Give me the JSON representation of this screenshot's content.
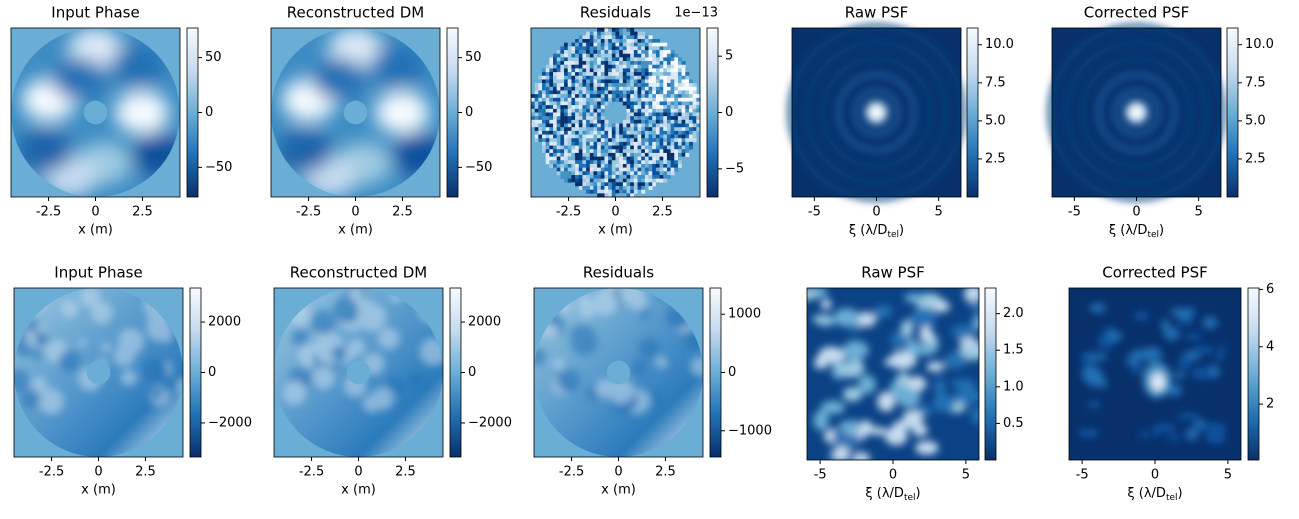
{
  "chart_data": [
    {
      "type": "heatmap",
      "title": "Input Phase",
      "xlabel": "x (m)",
      "xlim": [
        -4.5,
        4.5
      ],
      "xticks": [
        -2.5,
        0.0,
        2.5
      ],
      "clim": [
        -77,
        77
      ],
      "cticks": [
        -50,
        0,
        50
      ],
      "colormap": "Blues_r",
      "pattern": "pupil-smooth"
    },
    {
      "type": "heatmap",
      "title": "Reconstructed DM",
      "xlabel": "x (m)",
      "xlim": [
        -4.5,
        4.5
      ],
      "xticks": [
        -2.5,
        0.0,
        2.5
      ],
      "clim": [
        -77,
        77
      ],
      "cticks": [
        -50,
        0,
        50
      ],
      "colormap": "Blues_r",
      "pattern": "pupil-smooth"
    },
    {
      "type": "heatmap",
      "title": "Residuals",
      "xlabel": "x (m)",
      "xlim": [
        -4.5,
        4.5
      ],
      "xticks": [
        -2.5,
        0.0,
        2.5
      ],
      "clim": [
        -7.5,
        7.5
      ],
      "cticks": [
        -5,
        0,
        5
      ],
      "colorbar_offset": "1e−13",
      "colormap": "Blues_r",
      "pattern": "pupil-noise"
    },
    {
      "type": "heatmap",
      "title": "Raw PSF",
      "xlabel": {
        "text": "ξ (λ/D",
        "subscript": "tel",
        "suffix": ")"
      },
      "xlim": [
        -6.8,
        6.8
      ],
      "xticks": [
        -5,
        0,
        5
      ],
      "clim": [
        0,
        11.1
      ],
      "cticks": [
        2.5,
        {
          "value": 5,
          "label": "5.0"
        },
        7.5,
        {
          "value": 10,
          "label": "10.0"
        }
      ],
      "colormap": "Blues_r",
      "pattern": "psf-rings"
    },
    {
      "type": "heatmap",
      "title": "Corrected PSF",
      "xlabel": {
        "text": "ξ (λ/D",
        "subscript": "tel",
        "suffix": ")"
      },
      "xlim": [
        -6.8,
        6.8
      ],
      "xticks": [
        -5,
        0,
        5
      ],
      "clim": [
        0,
        11.1
      ],
      "cticks": [
        2.5,
        {
          "value": 5,
          "label": "5.0"
        },
        7.5,
        {
          "value": 10,
          "label": "10.0"
        }
      ],
      "colormap": "Blues_r",
      "pattern": "psf-rings"
    },
    {
      "type": "heatmap",
      "title": "Input Phase",
      "xlabel": "x (m)",
      "xlim": [
        -4.5,
        4.5
      ],
      "xticks": [
        -2.5,
        0.0,
        2.5
      ],
      "clim": [
        -3350,
        3350
      ],
      "cticks": [
        -2000,
        0,
        2000
      ],
      "colormap": "Blues_r",
      "pattern": "pupil-turb"
    },
    {
      "type": "heatmap",
      "title": "Reconstructed DM",
      "xlabel": "x (m)",
      "xlim": [
        -4.5,
        4.5
      ],
      "xticks": [
        -2.5,
        0.0,
        2.5
      ],
      "clim": [
        -3350,
        3350
      ],
      "cticks": [
        -2000,
        0,
        2000
      ],
      "colormap": "Blues_r",
      "pattern": "pupil-turb"
    },
    {
      "type": "heatmap",
      "title": "Residuals",
      "xlabel": "x (m)",
      "xlim": [
        -4.5,
        4.5
      ],
      "xticks": [
        -2.5,
        0.0,
        2.5
      ],
      "clim": [
        -1450,
        1450
      ],
      "cticks": [
        -1000,
        0,
        1000
      ],
      "colormap": "Blues_r",
      "pattern": "pupil-turb"
    },
    {
      "type": "heatmap",
      "title": "Raw PSF",
      "xlabel": {
        "text": "ξ (λ/D",
        "subscript": "tel",
        "suffix": ")"
      },
      "xlim": [
        -5.9,
        5.9
      ],
      "xticks": [
        -5,
        0,
        5
      ],
      "clim": [
        0,
        2.35
      ],
      "cticks": [
        0.5,
        {
          "value": 1,
          "label": "1.0"
        },
        1.5,
        {
          "value": 2,
          "label": "2.0"
        }
      ],
      "colormap": "Blues_r",
      "pattern": "psf-speckle"
    },
    {
      "type": "heatmap",
      "title": "Corrected PSF",
      "xlabel": {
        "text": "ξ (λ/D",
        "subscript": "tel",
        "suffix": ")"
      },
      "xlim": [
        -5.9,
        5.9
      ],
      "xticks": [
        -5,
        0,
        5
      ],
      "clim": [
        0.05,
        6.05
      ],
      "cticks": [
        2,
        4,
        6
      ],
      "colormap": "Blues_r",
      "pattern": "psf-core"
    }
  ]
}
